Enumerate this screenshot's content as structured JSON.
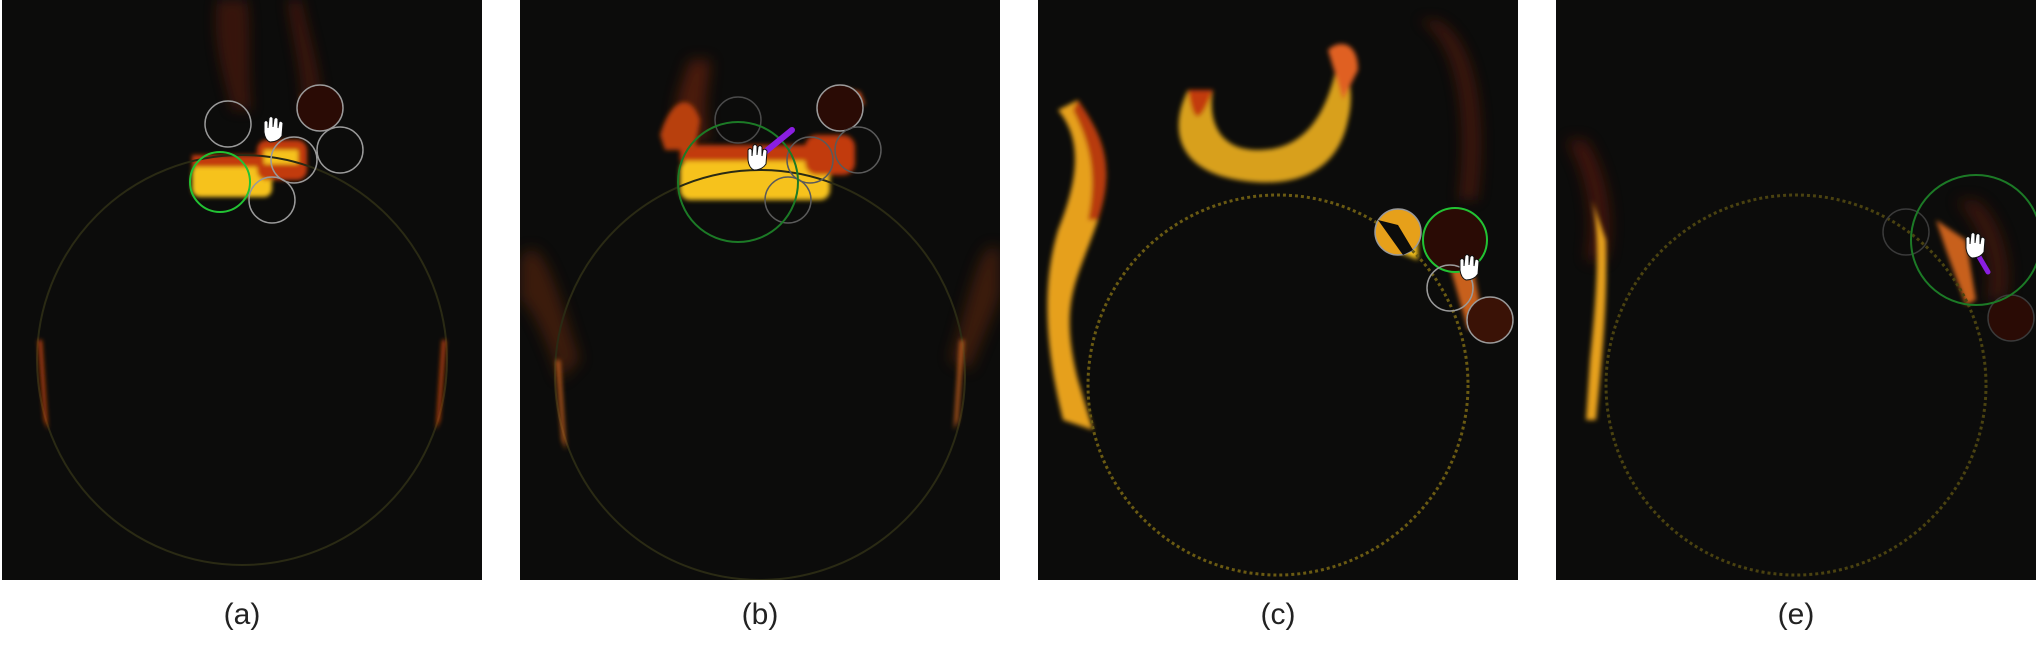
{
  "panels": [
    {
      "caption": "(a)",
      "hand_icon": "hand-cursor-icon"
    },
    {
      "caption": "(b)",
      "hand_icon": "hand-cursor-icon"
    },
    {
      "caption": "(c)",
      "hand_icon": "hand-cursor-icon"
    },
    {
      "caption": "(e)",
      "hand_icon": "hand-cursor-icon"
    }
  ],
  "colors": {
    "background": "#0c0c0b",
    "flame_core": "#f6c21a",
    "flame_edge": "#c23a0a",
    "focus_ring": "#22c233",
    "sensor_ring": "#9a9a9a",
    "pointer": "#8a1ee0",
    "boundary": "#5a5a10"
  }
}
